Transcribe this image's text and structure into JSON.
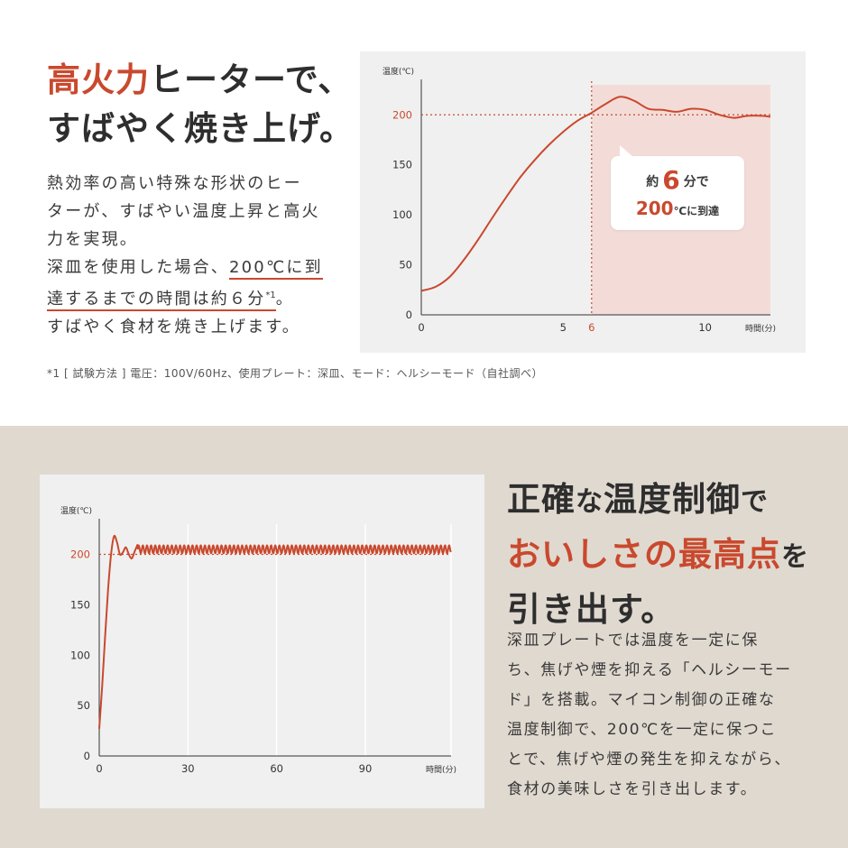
{
  "top": {
    "heading_line1_accent": "高火力",
    "heading_line1_rest": "ヒーターで、",
    "heading_line2": "すばやく焼き上げ。",
    "para_line1": "熱効率の高い特殊な形状のヒー",
    "para_line2": "ターが、すばやい温度上昇と高火",
    "para_line3": "力を実現。",
    "para_line4_a": "深皿を使用した場合、",
    "para_line4_b": "200℃に到",
    "para_line5_a": "達するまでの時間は約６分",
    "para_line5_sup": "*1",
    "para_line5_b": "。",
    "para_line6": "すばやく食材を焼き上げます。",
    "footnote": "*1 [ 試験方法 ] 電圧：100V/60Hz、使用プレート：深皿、モード：ヘルシーモード（自社調べ）",
    "callout": {
      "prefix": "約",
      "number": "6",
      "unit": "分で",
      "temp": "200",
      "temp_unit": "℃に到達"
    }
  },
  "bottom": {
    "heading_line1_a": "正確",
    "heading_line1_b": "な",
    "heading_line1_c": "温度制御",
    "heading_line1_d": "で",
    "heading_line2_accent": "おいしさの最高点",
    "heading_line2_rest": "を",
    "heading_line3": "引き出す。",
    "para_lines": [
      "深皿プレートでは温度を一定に保",
      "ち、焦げや煙を抑える「ヘルシーモー",
      "ド」を搭載。マイコン制御の正確な",
      "温度制御で、200℃を一定に保つこ",
      "とで、焦げや煙の発生を抑えながら、",
      "食材の美味しさを引き出します。"
    ]
  },
  "colors": {
    "accent": "#c9492e",
    "highlight": "#f3dcd8",
    "text": "#2e2e2e"
  },
  "chart_data": [
    {
      "type": "line",
      "ylabel": "温度(℃)",
      "xlabel": "時間(分)",
      "xlim": [
        0,
        12.3
      ],
      "ylim": [
        0,
        230
      ],
      "y_ticks": [
        "0",
        "50",
        "100",
        "150",
        "200"
      ],
      "x_ticks": [
        "0",
        "5",
        "6",
        "10"
      ],
      "x_tick_values": [
        0,
        5,
        6,
        10
      ],
      "reference_y": 200,
      "reference_x": 6,
      "highlight_from_x": 6,
      "series": [
        {
          "x": [
            0,
            0.5,
            1,
            1.5,
            2,
            2.5,
            3,
            3.5,
            4,
            4.5,
            5,
            5.5,
            6,
            6.5,
            7,
            7.5,
            8,
            8.5,
            9,
            9.5,
            10,
            10.5,
            11,
            11.5,
            12,
            12.3
          ],
          "y": [
            24,
            28,
            38,
            55,
            75,
            97,
            118,
            138,
            155,
            170,
            183,
            194,
            202,
            211,
            218,
            214,
            206,
            205,
            203,
            206,
            205,
            200,
            197,
            199,
            199,
            198
          ]
        }
      ]
    },
    {
      "type": "line",
      "ylabel": "温度(℃)",
      "xlabel": "時間(分)",
      "xlim": [
        0,
        119
      ],
      "ylim": [
        0,
        230
      ],
      "y_ticks": [
        "0",
        "50",
        "100",
        "150",
        "200"
      ],
      "x_ticks": [
        "0",
        "30",
        "60",
        "90"
      ],
      "x_tick_values": [
        0,
        30,
        60,
        90
      ],
      "reference_y": 200,
      "series": [
        {
          "x": [
            0,
            1,
            2,
            3,
            4,
            5,
            6,
            7,
            8,
            9,
            10,
            11,
            12,
            13
          ],
          "y": [
            27,
            70,
            120,
            165,
            200,
            218,
            212,
            200,
            202,
            207,
            200,
            196,
            203,
            210
          ],
          "oscillation": {
            "from_x": 13,
            "to_x": 119,
            "center": 205,
            "amplitude": 4,
            "period": 1.4
          }
        }
      ]
    }
  ]
}
